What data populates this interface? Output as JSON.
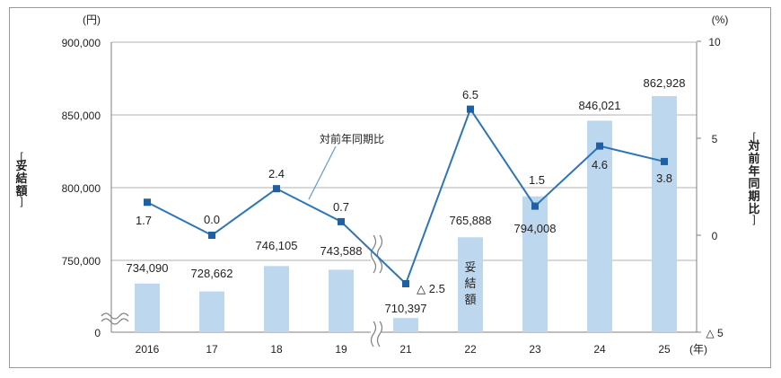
{
  "chart_data": {
    "type": "bar",
    "categories": [
      "2016",
      "17",
      "18",
      "19",
      "21",
      "22",
      "23",
      "24",
      "25"
    ],
    "x_unit": "(年)",
    "series": [
      {
        "name": "妥結額",
        "type": "bar",
        "axis": "left",
        "values": [
          734090,
          728662,
          746105,
          743588,
          710397,
          765888,
          794008,
          846021,
          862928
        ],
        "labels": [
          "734,090",
          "728,662",
          "746,105",
          "743,588",
          "710,397",
          "765,888",
          "794,008",
          "846,021",
          "862,928"
        ],
        "color": "#bdd7ee"
      },
      {
        "name": "対前年同期比",
        "type": "line",
        "axis": "right",
        "values": [
          1.7,
          0.0,
          2.4,
          0.7,
          -2.5,
          6.5,
          1.5,
          4.6,
          3.8
        ],
        "labels": [
          "1.7",
          "0.0",
          "2.4",
          "0.7",
          "△ 2.5",
          "6.5",
          "1.5",
          "4.6",
          "3.8"
        ],
        "color": "#2e75b6"
      }
    ],
    "left_axis": {
      "unit": "(円)",
      "title": "妥結額",
      "range": [
        700000,
        900000
      ],
      "ticks": [
        0,
        750000,
        800000,
        850000,
        900000
      ],
      "tick_labels": [
        "0",
        "750,000",
        "800,000",
        "850,000",
        "900,000"
      ],
      "broken": true
    },
    "right_axis": {
      "unit": "(%)",
      "title": "対前年同期比",
      "range": [
        -5,
        10
      ],
      "ticks": [
        -5,
        0,
        5,
        10
      ],
      "tick_labels": [
        "△ 5",
        "0",
        "5",
        "10"
      ]
    },
    "x_axis_break_between": [
      "19",
      "21"
    ],
    "bar_inline_label": "妥結額",
    "line_callout_label": "対前年同期比",
    "grid": true,
    "colors": {
      "bar": "#bdd7ee",
      "line": "#2e75b6",
      "marker": "#1f5fa3",
      "grid": "#b0b0b0",
      "text": "#222222"
    }
  }
}
